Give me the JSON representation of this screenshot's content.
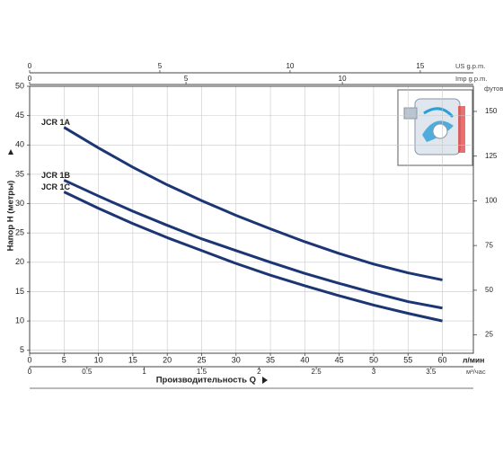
{
  "chart_data": {
    "type": "line",
    "x_label": "Производительность Q",
    "y_label": "Напор H (метры)",
    "x": [
      5,
      10,
      15,
      20,
      25,
      30,
      35,
      40,
      45,
      50,
      55,
      60
    ],
    "series": [
      {
        "name": "JCR 1A",
        "color": "#1c3674",
        "values": [
          43,
          39.5,
          36.2,
          33.2,
          30.5,
          28,
          25.7,
          23.5,
          21.5,
          19.7,
          18.2,
          17
        ]
      },
      {
        "name": "JCR 1B",
        "color": "#1c3674",
        "values": [
          34,
          31.3,
          28.7,
          26.3,
          24,
          22,
          20,
          18.1,
          16.4,
          14.8,
          13.3,
          12.2
        ]
      },
      {
        "name": "JCR 1C",
        "color": "#1c3674",
        "values": [
          32,
          29.2,
          26.6,
          24.2,
          22,
          19.8,
          17.8,
          16,
          14.3,
          12.7,
          11.3,
          10
        ]
      }
    ],
    "xlim": [
      0,
      64.5
    ],
    "xticks": [
      0,
      5,
      10,
      15,
      20,
      25,
      30,
      35,
      40,
      45,
      50,
      55,
      60
    ],
    "x_unit": "л/мин",
    "ylim": [
      4.5,
      50
    ],
    "yticks": [
      5,
      10,
      15,
      20,
      25,
      30,
      35,
      40,
      45,
      50
    ],
    "y2lim": [
      14.76,
      164.04
    ],
    "y2ticks": [
      25,
      50,
      75,
      100,
      125,
      150
    ],
    "y2_unit": "футов",
    "secondary_x_axes": [
      {
        "unit": "US g.p.m.",
        "lim": [
          0,
          17.04
        ],
        "ticks": [
          0,
          5,
          10,
          15
        ]
      },
      {
        "unit": "Imp g.p.m.",
        "lim": [
          0,
          14.19
        ],
        "ticks": [
          0,
          5,
          10
        ]
      },
      {
        "unit": "м³/час",
        "lim": [
          0,
          3.87
        ],
        "ticks": [
          0,
          0.5,
          1,
          1.5,
          2,
          2.5,
          3,
          3.5
        ]
      }
    ],
    "grid": true
  }
}
